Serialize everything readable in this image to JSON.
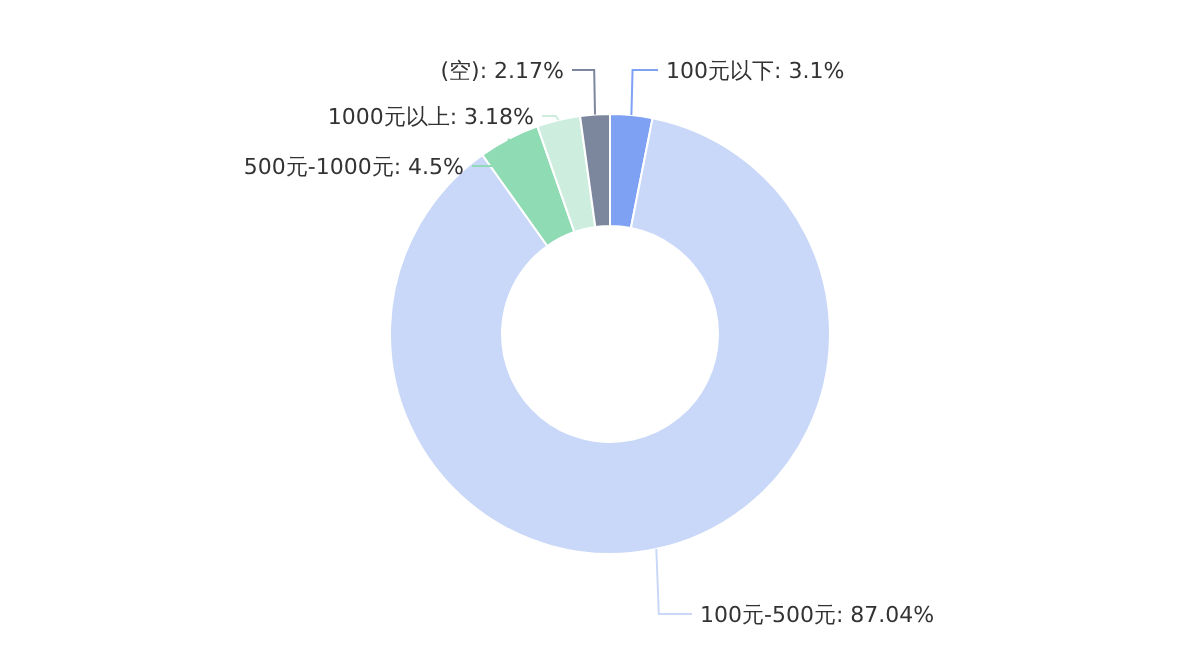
{
  "chart_data": {
    "type": "donut",
    "categories": [
      "100元以下",
      "100元-500元",
      "500元-1000元",
      "1000元以上",
      "(空)"
    ],
    "values": [
      3.1,
      87.04,
      4.5,
      3.18,
      2.17
    ],
    "value_labels": [
      "3.1%",
      "87.04%",
      "4.5%",
      "3.18%",
      "2.17%"
    ],
    "colors": [
      "#7ea1f4",
      "#c9d8f8",
      "#8fdbb4",
      "#cdeedf",
      "#7c879d"
    ]
  }
}
